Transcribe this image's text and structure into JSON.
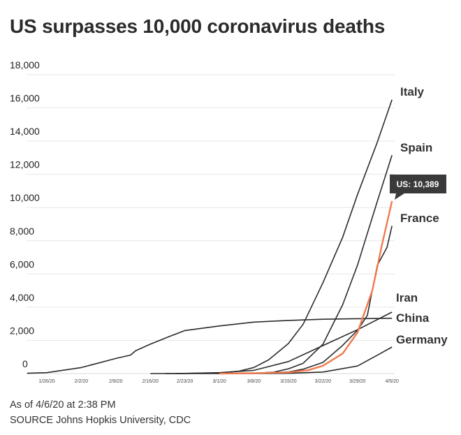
{
  "chart_data": {
    "type": "line",
    "title": "US surpasses 10,000 coronavirus deaths",
    "ylim": [
      0,
      18000
    ],
    "yticks": [
      0,
      2000,
      4000,
      6000,
      8000,
      10000,
      12000,
      14000,
      16000,
      18000
    ],
    "ytick_labels": [
      "0",
      "2,000",
      "4,000",
      "6,000",
      "8,000",
      "10,000",
      "12,000",
      "14,000",
      "16,000",
      "18,000"
    ],
    "xtick_labels": [
      "1/26/20",
      "2/2/20",
      "2/9/20",
      "2/16/20",
      "2/23/20",
      "3/1/20",
      "3/8/20",
      "3/15/20",
      "3/22/20",
      "3/29/20",
      "4/5/20"
    ],
    "grid": true,
    "highlight_color": "#f07a4f",
    "line_color": "#2b2b2b",
    "callout": "US: 10,389",
    "series": [
      {
        "name": "Italy",
        "points": [
          [
            "2/21/20",
            1
          ],
          [
            "3/1/20",
            34
          ],
          [
            "3/5/20",
            148
          ],
          [
            "3/8/20",
            366
          ],
          [
            "3/11/20",
            827
          ],
          [
            "3/15/20",
            1809
          ],
          [
            "3/18/20",
            2978
          ],
          [
            "3/22/20",
            5476
          ],
          [
            "3/26/20",
            8215
          ],
          [
            "3/29/20",
            10779
          ],
          [
            "4/2/20",
            13915
          ],
          [
            "4/5/20",
            16500
          ]
        ]
      },
      {
        "name": "Spain",
        "points": [
          [
            "3/3/20",
            1
          ],
          [
            "3/8/20",
            17
          ],
          [
            "3/12/20",
            86
          ],
          [
            "3/15/20",
            288
          ],
          [
            "3/18/20",
            623
          ],
          [
            "3/22/20",
            1772
          ],
          [
            "3/26/20",
            4145
          ],
          [
            "3/29/20",
            6528
          ],
          [
            "4/2/20",
            10348
          ],
          [
            "4/5/20",
            13150
          ]
        ]
      },
      {
        "name": "US",
        "highlight": true,
        "points": [
          [
            "3/1/20",
            1
          ],
          [
            "3/8/20",
            22
          ],
          [
            "3/15/20",
            68
          ],
          [
            "3/19/20",
            200
          ],
          [
            "3/22/20",
            471
          ],
          [
            "3/26/20",
            1209
          ],
          [
            "3/29/20",
            2467
          ],
          [
            "4/1/20",
            5000
          ],
          [
            "4/3/20",
            7800
          ],
          [
            "4/5/20",
            10389
          ]
        ]
      },
      {
        "name": "France",
        "points": [
          [
            "3/1/20",
            2
          ],
          [
            "3/8/20",
            19
          ],
          [
            "3/15/20",
            91
          ],
          [
            "3/18/20",
            264
          ],
          [
            "3/22/20",
            674
          ],
          [
            "3/26/20",
            1700
          ],
          [
            "3/29/20",
            2606
          ],
          [
            "3/31/20",
            3500
          ],
          [
            "4/2/20",
            6500
          ],
          [
            "4/4/20",
            7600
          ],
          [
            "4/5/20",
            8900
          ]
        ]
      },
      {
        "name": "Iran",
        "points": [
          [
            "2/19/20",
            2
          ],
          [
            "2/23/20",
            8
          ],
          [
            "3/1/20",
            54
          ],
          [
            "3/8/20",
            194
          ],
          [
            "3/15/20",
            724
          ],
          [
            "3/22/20",
            1685
          ],
          [
            "3/29/20",
            2640
          ],
          [
            "4/5/20",
            3700
          ]
        ]
      },
      {
        "name": "China",
        "points": [
          [
            "1/22/20",
            17
          ],
          [
            "1/26/20",
            56
          ],
          [
            "2/2/20",
            361
          ],
          [
            "2/9/20",
            908
          ],
          [
            "2/12/20",
            1115
          ],
          [
            "2/13/20",
            1370
          ],
          [
            "2/16/20",
            1770
          ],
          [
            "2/20/20",
            2250
          ],
          [
            "2/23/20",
            2592
          ],
          [
            "3/1/20",
            2870
          ],
          [
            "3/8/20",
            3100
          ],
          [
            "3/15/20",
            3199
          ],
          [
            "3/22/20",
            3270
          ],
          [
            "3/29/20",
            3304
          ],
          [
            "4/5/20",
            3330
          ]
        ]
      },
      {
        "name": "Germany",
        "points": [
          [
            "2/16/20",
            0
          ],
          [
            "3/8/20",
            0
          ],
          [
            "3/15/20",
            12
          ],
          [
            "3/22/20",
            94
          ],
          [
            "3/29/20",
            455
          ],
          [
            "4/2/20",
            1100
          ],
          [
            "4/5/20",
            1600
          ]
        ]
      }
    ]
  },
  "footer": {
    "as_of": "As of 4/6/20 at 2:38 PM",
    "source": "SOURCE Johns Hopkis University, CDC"
  }
}
